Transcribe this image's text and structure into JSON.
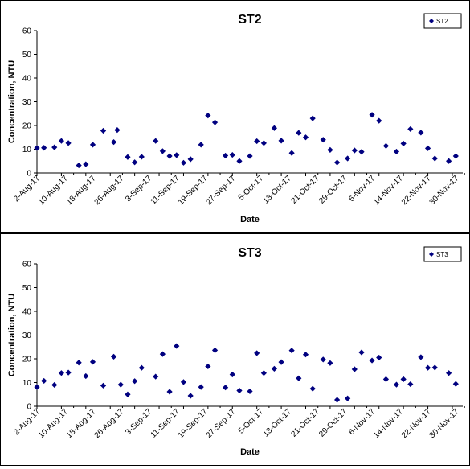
{
  "chart_data": [
    {
      "type": "scatter",
      "title": "ST2",
      "xlabel": "Date",
      "ylabel": "Concentration, NTU",
      "ylim": [
        0,
        60
      ],
      "yticks": [
        "0",
        "10",
        "20",
        "30",
        "40",
        "50",
        "60"
      ],
      "xlim": [
        "2017-08-02",
        "2017-12-02"
      ],
      "xticks": [
        "2-Aug-17",
        "10-Aug-17",
        "18-Aug-17",
        "26-Aug-17",
        "3-Sep-17",
        "11-Sep-17",
        "19-Sep-17",
        "27-Sep-17",
        "5-Oct-17",
        "13-Oct-17",
        "21-Oct-17",
        "29-Oct-17",
        "6-Nov-17",
        "14-Nov-17",
        "22-Nov-17",
        "30-Nov-17"
      ],
      "grid": false,
      "legend": "top-right",
      "marker_color": "#000080",
      "series": [
        {
          "name": "ST2",
          "points": [
            [
              "2017-08-02",
              10.5
            ],
            [
              "2017-08-04",
              10.6
            ],
            [
              "2017-08-07",
              10.8
            ],
            [
              "2017-08-09",
              13.5
            ],
            [
              "2017-08-11",
              12.6
            ],
            [
              "2017-08-14",
              3.2
            ],
            [
              "2017-08-16",
              3.7
            ],
            [
              "2017-08-18",
              11.9
            ],
            [
              "2017-08-21",
              17.8
            ],
            [
              "2017-08-24",
              13.0
            ],
            [
              "2017-08-25",
              18.1
            ],
            [
              "2017-08-28",
              6.7
            ],
            [
              "2017-08-30",
              4.5
            ],
            [
              "2017-09-01",
              6.8
            ],
            [
              "2017-09-05",
              13.5
            ],
            [
              "2017-09-07",
              9.2
            ],
            [
              "2017-09-09",
              7.1
            ],
            [
              "2017-09-11",
              7.5
            ],
            [
              "2017-09-13",
              4.3
            ],
            [
              "2017-09-15",
              5.8
            ],
            [
              "2017-09-18",
              11.9
            ],
            [
              "2017-09-20",
              24.2
            ],
            [
              "2017-09-22",
              21.3
            ],
            [
              "2017-09-25",
              7.3
            ],
            [
              "2017-09-27",
              7.6
            ],
            [
              "2017-09-29",
              5.0
            ],
            [
              "2017-10-02",
              7.1
            ],
            [
              "2017-10-04",
              13.4
            ],
            [
              "2017-10-06",
              12.6
            ],
            [
              "2017-10-09",
              18.9
            ],
            [
              "2017-10-11",
              13.6
            ],
            [
              "2017-10-14",
              8.4
            ],
            [
              "2017-10-16",
              16.9
            ],
            [
              "2017-10-18",
              15.0
            ],
            [
              "2017-10-20",
              23.0
            ],
            [
              "2017-10-23",
              14.0
            ],
            [
              "2017-10-25",
              9.7
            ],
            [
              "2017-10-27",
              4.4
            ],
            [
              "2017-10-30",
              6.1
            ],
            [
              "2017-11-01",
              9.5
            ],
            [
              "2017-11-03",
              8.9
            ],
            [
              "2017-11-06",
              24.5
            ],
            [
              "2017-11-08",
              22.0
            ],
            [
              "2017-11-10",
              11.4
            ],
            [
              "2017-11-13",
              9.0
            ],
            [
              "2017-11-15",
              12.4
            ],
            [
              "2017-11-17",
              18.5
            ],
            [
              "2017-11-20",
              17.0
            ],
            [
              "2017-11-22",
              10.4
            ],
            [
              "2017-11-24",
              6.1
            ],
            [
              "2017-11-28",
              5.0
            ],
            [
              "2017-11-30",
              7.1
            ]
          ]
        }
      ]
    },
    {
      "type": "scatter",
      "title": "ST3",
      "xlabel": "Date",
      "ylabel": "Concentration, NTU",
      "ylim": [
        0,
        60
      ],
      "yticks": [
        "0",
        "10",
        "20",
        "30",
        "40",
        "50",
        "60"
      ],
      "xlim": [
        "2017-08-02",
        "2017-12-02"
      ],
      "xticks": [
        "2-Aug-17",
        "10-Aug-17",
        "18-Aug-17",
        "26-Aug-17",
        "3-Sep-17",
        "11-Sep-17",
        "19-Sep-17",
        "27-Sep-17",
        "5-Oct-17",
        "13-Oct-17",
        "21-Oct-17",
        "29-Oct-17",
        "6-Nov-17",
        "14-Nov-17",
        "22-Nov-17",
        "30-Nov-17"
      ],
      "grid": false,
      "legend": "top-right",
      "marker_color": "#000080",
      "series": [
        {
          "name": "ST3",
          "points": [
            [
              "2017-08-02",
              8.1
            ],
            [
              "2017-08-04",
              10.7
            ],
            [
              "2017-08-07",
              9.0
            ],
            [
              "2017-08-09",
              14.0
            ],
            [
              "2017-08-11",
              14.2
            ],
            [
              "2017-08-14",
              18.4
            ],
            [
              "2017-08-16",
              12.7
            ],
            [
              "2017-08-18",
              18.7
            ],
            [
              "2017-08-21",
              8.7
            ],
            [
              "2017-08-24",
              20.9
            ],
            [
              "2017-08-26",
              9.1
            ],
            [
              "2017-08-28",
              5.0
            ],
            [
              "2017-08-30",
              10.6
            ],
            [
              "2017-09-01",
              16.2
            ],
            [
              "2017-09-05",
              12.5
            ],
            [
              "2017-09-07",
              22.0
            ],
            [
              "2017-09-09",
              6.1
            ],
            [
              "2017-09-11",
              25.4
            ],
            [
              "2017-09-13",
              10.2
            ],
            [
              "2017-09-15",
              4.4
            ],
            [
              "2017-09-18",
              8.1
            ],
            [
              "2017-09-20",
              16.8
            ],
            [
              "2017-09-22",
              23.6
            ],
            [
              "2017-09-25",
              7.9
            ],
            [
              "2017-09-27",
              13.4
            ],
            [
              "2017-09-29",
              6.6
            ],
            [
              "2017-10-02",
              6.3
            ],
            [
              "2017-10-04",
              22.4
            ],
            [
              "2017-10-06",
              14.0
            ],
            [
              "2017-10-09",
              15.8
            ],
            [
              "2017-10-11",
              18.6
            ],
            [
              "2017-10-14",
              23.5
            ],
            [
              "2017-10-16",
              11.8
            ],
            [
              "2017-10-18",
              21.8
            ],
            [
              "2017-10-20",
              7.4
            ],
            [
              "2017-10-23",
              19.7
            ],
            [
              "2017-10-25",
              18.2
            ],
            [
              "2017-10-27",
              2.7
            ],
            [
              "2017-10-30",
              3.3
            ],
            [
              "2017-11-01",
              15.6
            ],
            [
              "2017-11-03",
              22.7
            ],
            [
              "2017-11-06",
              19.3
            ],
            [
              "2017-11-08",
              20.5
            ],
            [
              "2017-11-10",
              11.4
            ],
            [
              "2017-11-13",
              9.1
            ],
            [
              "2017-11-15",
              11.4
            ],
            [
              "2017-11-17",
              9.3
            ],
            [
              "2017-11-20",
              20.7
            ],
            [
              "2017-11-22",
              16.2
            ],
            [
              "2017-11-24",
              16.3
            ],
            [
              "2017-11-28",
              14.0
            ],
            [
              "2017-11-30",
              9.4
            ]
          ]
        }
      ]
    }
  ]
}
